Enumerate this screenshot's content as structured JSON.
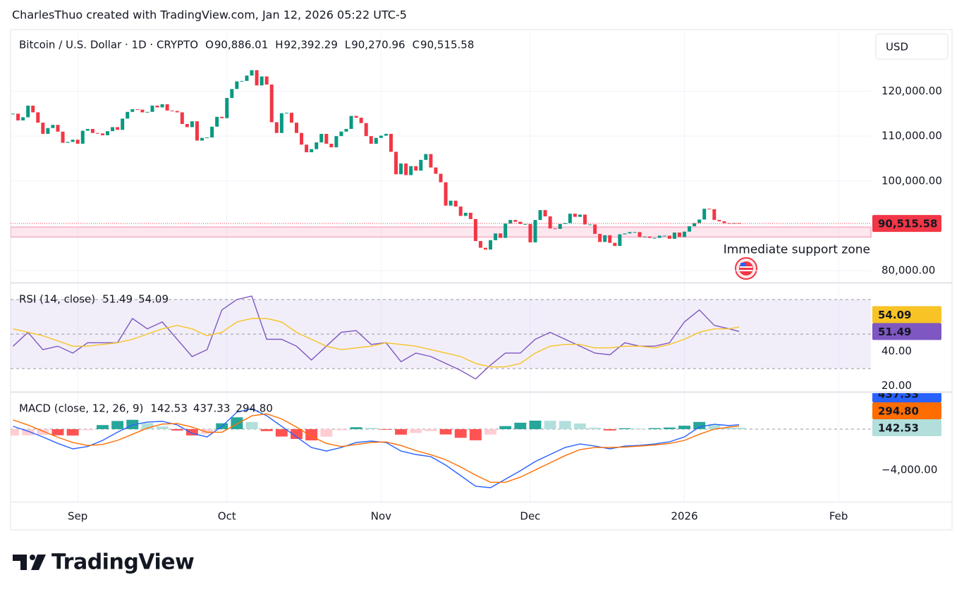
{
  "header": {
    "attribution": "CharlesThuo created with TradingView.com, Jan 12, 2026 05:22 UTC-5",
    "currency": "USD",
    "logo": "TradingView"
  },
  "chart_data": [
    {
      "type": "candlestick",
      "title": "Bitcoin / U.S. Dollar · 1D · CRYPTO",
      "ohlc": [
        {
          "key": "O",
          "value": "90,886.01"
        },
        {
          "key": "H",
          "value": "92,392.29"
        },
        {
          "key": "L",
          "value": "90,270.96"
        },
        {
          "key": "C",
          "value": "90,515.58"
        }
      ],
      "x": [
        0,
        1,
        2,
        3,
        4,
        5,
        6,
        7,
        8,
        9,
        10,
        11,
        12,
        13,
        14,
        15,
        16,
        17,
        18,
        19,
        20,
        21,
        22,
        23,
        24,
        25,
        26,
        27,
        28,
        29,
        30,
        31,
        32,
        33,
        34,
        35,
        36,
        37,
        38,
        39,
        40,
        41,
        42,
        43,
        44,
        45,
        46,
        47,
        48,
        49,
        50,
        51,
        52,
        53,
        54,
        55,
        56,
        57,
        58,
        59,
        60,
        61,
        62,
        63,
        64,
        65,
        66,
        67,
        68,
        69,
        70,
        71,
        72,
        73,
        74,
        75,
        76,
        77,
        78,
        79,
        80,
        81,
        82,
        83,
        84,
        85,
        86,
        87,
        88,
        89,
        90,
        91,
        92,
        93,
        94,
        95,
        96,
        97,
        98,
        99,
        100,
        101,
        102,
        103,
        104,
        105,
        106,
        107,
        108,
        109,
        110,
        111,
        112,
        113,
        114,
        115,
        116,
        117,
        118,
        119,
        120,
        121,
        122,
        123,
        124,
        125,
        126,
        127,
        128,
        129,
        130,
        131,
        132,
        133,
        134,
        135,
        136,
        137,
        138,
        139,
        140,
        141,
        142,
        143,
        144,
        145,
        146
      ],
      "values": [
        115000,
        113500,
        114200,
        116800,
        115300,
        113000,
        110500,
        111800,
        112500,
        111000,
        108500,
        108700,
        109200,
        108300,
        111200,
        111600,
        110700,
        110600,
        110200,
        111100,
        112000,
        111400,
        113900,
        115400,
        116000,
        115900,
        115300,
        115400,
        116800,
        116400,
        117100,
        115700,
        115600,
        115300,
        112700,
        112000,
        113300,
        109000,
        109600,
        109700,
        112100,
        114300,
        114000,
        118500,
        120500,
        122200,
        122300,
        123500,
        124700,
        121300,
        123300,
        121500,
        113100,
        110700,
        115100,
        115200,
        113000,
        110700,
        108100,
        106400,
        107100,
        108600,
        110500,
        108300,
        107500,
        110000,
        111000,
        111600,
        114500,
        114100,
        112900,
        110000,
        108300,
        109600,
        110100,
        110500,
        106500,
        101500,
        103900,
        101300,
        103300,
        102300,
        104700,
        106000,
        103000,
        101600,
        99700,
        94500,
        95600,
        94300,
        92200,
        92900,
        91500,
        86600,
        85100,
        84700,
        86800,
        88300,
        87300,
        90500,
        91300,
        90900,
        90400,
        90400,
        86300,
        91300,
        93500,
        92100,
        89400,
        89300,
        90400,
        90600,
        92700,
        92000,
        92500,
        90300,
        90300,
        88200,
        86400,
        87900,
        86200,
        85500,
        88100,
        88300,
        88600,
        88600,
        87500,
        87600,
        87300,
        87300,
        87800,
        87800,
        87100,
        88500,
        87500,
        88700,
        89900,
        90600,
        91400,
        93800,
        93700,
        91300,
        91000,
        90600,
        90500,
        90600,
        90515.58
      ],
      "last_label": "90,515.58",
      "up_color": "#089981",
      "down_color": "#f23645",
      "zone": [
        87500,
        89700
      ],
      "zone_color": "#f8bbd0",
      "annotation": "Immediate support zone",
      "xlim": [
        -0.5,
        172.5
      ],
      "ylim": [
        77500,
        133750
      ],
      "yticks": [
        {
          "value": 80000,
          "label": "80,000.00"
        },
        {
          "value": 100000,
          "label": "100,000.00"
        },
        {
          "value": 110000,
          "label": "110,000.00"
        },
        {
          "value": 120000,
          "label": "120,000.00"
        }
      ],
      "grid": true
    },
    {
      "type": "line",
      "title": "RSI (14, close)",
      "x": [
        0,
        3,
        6,
        9,
        12,
        15,
        18,
        21,
        24,
        27,
        30,
        33,
        36,
        39,
        42,
        45,
        48,
        51,
        54,
        57,
        60,
        63,
        66,
        69,
        72,
        75,
        78,
        81,
        84,
        87,
        90,
        93,
        96,
        99,
        102,
        105,
        108,
        111,
        114,
        117,
        120,
        123,
        126,
        129,
        132,
        135,
        138,
        141,
        144,
        146
      ],
      "series": [
        {
          "color": "#7e57c2",
          "last_label": "51.49",
          "values": [
            43,
            51,
            41,
            43,
            39,
            45,
            45,
            45,
            59,
            53,
            57,
            47,
            37,
            41,
            64,
            70,
            72,
            47,
            47,
            43,
            35,
            43,
            51,
            52,
            44,
            45,
            34,
            39,
            37,
            33,
            29,
            24,
            32,
            39,
            39,
            47,
            51,
            47,
            43,
            39,
            38,
            45,
            43,
            43,
            45,
            57,
            64,
            55,
            53,
            51.49
          ]
        },
        {
          "color": "#f7c325",
          "last_label": "54.09",
          "values": [
            53,
            51,
            49,
            46,
            43,
            43,
            44,
            45,
            47,
            50,
            53,
            55,
            53,
            49,
            51,
            57,
            59,
            59,
            57,
            51,
            47,
            43,
            41,
            42,
            43,
            45,
            44,
            43,
            41,
            39,
            37,
            33,
            31,
            31,
            33,
            39,
            43,
            44,
            44,
            42,
            42,
            43,
            43,
            42,
            44,
            47,
            51,
            53,
            53,
            54.09
          ]
        }
      ],
      "band": [
        30,
        70
      ],
      "band_color": "#7e57c2",
      "hlines": [
        70,
        50,
        30
      ],
      "xlim": [
        -0.5,
        172.5
      ],
      "ylim": [
        17,
        79
      ],
      "yticks": [
        {
          "value": 20,
          "label": "20.00"
        },
        {
          "value": 40,
          "label": "40.00"
        }
      ],
      "grid": false
    },
    {
      "type": "line",
      "title": "MACD (close, 12, 26, 9)",
      "x": [
        0,
        3,
        6,
        9,
        12,
        15,
        18,
        21,
        24,
        27,
        30,
        33,
        36,
        39,
        42,
        45,
        48,
        51,
        54,
        57,
        60,
        63,
        66,
        69,
        72,
        75,
        78,
        81,
        84,
        87,
        90,
        93,
        96,
        99,
        102,
        105,
        108,
        111,
        114,
        117,
        120,
        123,
        126,
        129,
        132,
        135,
        138,
        141,
        144,
        146
      ],
      "series": [
        {
          "type": "bar",
          "last_label": "142.53",
          "colors": [
            "#26a69a",
            "#b2dfdb",
            "#ff5252",
            "#ffcdd2"
          ],
          "values": [
            -624,
            -600,
            -560,
            -600,
            -630,
            -100,
            400,
            800,
            914,
            600,
            260,
            -136,
            -614,
            -460,
            576,
            1160,
            700,
            -190,
            -724,
            -960,
            -1100,
            -740,
            -100,
            190,
            130,
            -60,
            -540,
            -380,
            -190,
            -520,
            -850,
            -1090,
            -530,
            300,
            630,
            830,
            820,
            800,
            550,
            140,
            -130,
            90,
            60,
            100,
            160,
            340,
            707,
            480,
            145,
            142.53
          ]
        },
        {
          "color": "#2962ff",
          "last_label": "437.33",
          "values": [
            276,
            -200,
            -760,
            -1400,
            -1930,
            -1700,
            -1100,
            -300,
            414,
            700,
            760,
            414,
            -414,
            -760,
            276,
            1660,
            2000,
            1310,
            276,
            -760,
            -1800,
            -2140,
            -1800,
            -1310,
            -1170,
            -1310,
            -2140,
            -2480,
            -2690,
            -3520,
            -4550,
            -5590,
            -5730,
            -4900,
            -4070,
            -3170,
            -2480,
            -1800,
            -1450,
            -1660,
            -1930,
            -1660,
            -1590,
            -1450,
            -1240,
            -760,
            207,
            480,
            345,
            437.33
          ]
        },
        {
          "color": "#ff6d00",
          "last_label": "294.80",
          "values": [
            900,
            400,
            -200,
            -800,
            -1300,
            -1600,
            -1500,
            -1100,
            -500,
            100,
            500,
            550,
            200,
            -300,
            -300,
            500,
            1300,
            1500,
            1000,
            200,
            -700,
            -1400,
            -1700,
            -1500,
            -1300,
            -1250,
            -1600,
            -2100,
            -2500,
            -3000,
            -3700,
            -4500,
            -5200,
            -5200,
            -4700,
            -4000,
            -3300,
            -2600,
            -2000,
            -1800,
            -1800,
            -1750,
            -1650,
            -1550,
            -1400,
            -1100,
            -500,
            0,
            200,
            294.8
          ]
        }
      ],
      "hlines": [
        0
      ],
      "xlim": [
        -0.5,
        172.5
      ],
      "ylim": [
        -7100,
        3520
      ],
      "xticks": [
        {
          "value": 13,
          "label": "Sep"
        },
        {
          "value": 43,
          "label": "Oct"
        },
        {
          "value": 74,
          "label": "Nov"
        },
        {
          "value": 104,
          "label": "Dec"
        },
        {
          "value": 135,
          "label": "2026"
        },
        {
          "value": 166,
          "label": "Feb"
        }
      ],
      "yticks": [
        {
          "value": -4000,
          "label": "−4,000.00"
        }
      ],
      "grid": false
    }
  ]
}
